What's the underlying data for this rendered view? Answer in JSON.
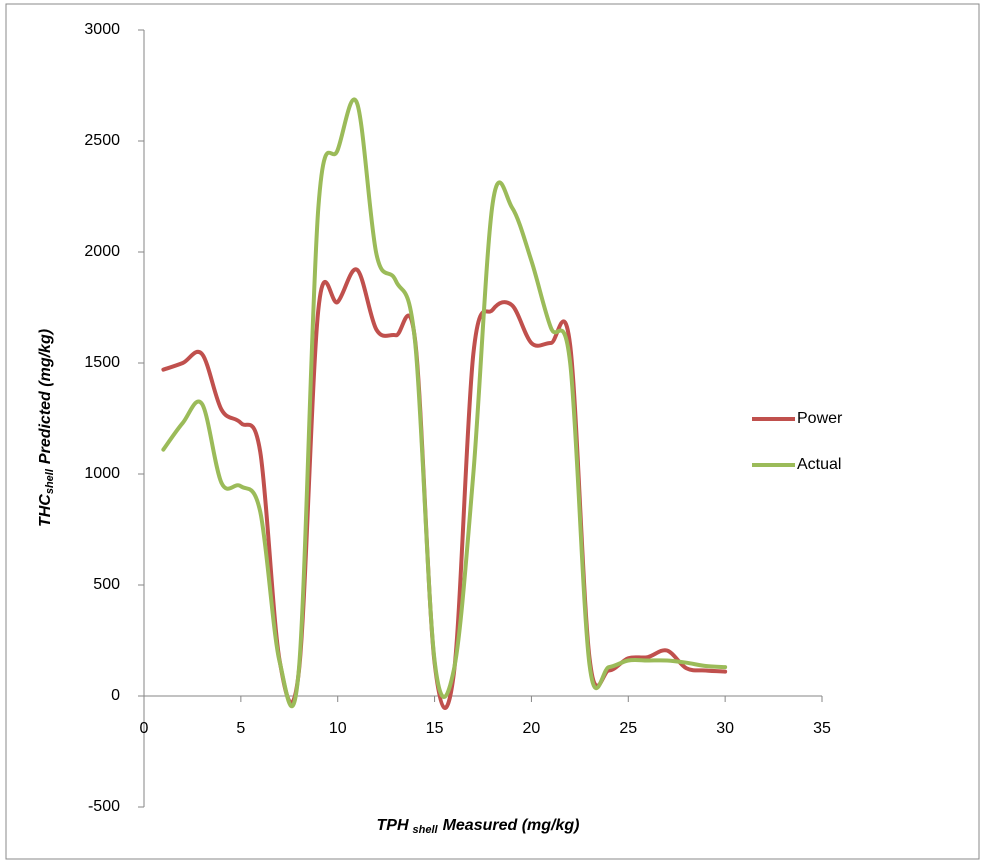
{
  "chart_data": {
    "type": "line",
    "x_label": {
      "main": "TPH",
      "sub": "shell",
      "rest": "Measured (mg/kg)"
    },
    "y_label": {
      "main": "THC",
      "sub": "shell",
      "rest": "Predicted (mg/kg)"
    },
    "x": [
      1,
      2,
      3,
      4,
      5,
      6,
      7,
      8,
      9,
      10,
      11,
      12,
      13,
      14,
      15,
      16,
      17,
      18,
      19,
      20,
      21,
      22,
      23,
      24,
      25,
      26,
      27,
      28,
      29,
      30
    ],
    "series": [
      {
        "name": "Power",
        "color": "#c0504d",
        "values": [
          1470,
          1500,
          1540,
          1290,
          1230,
          1100,
          160,
          115,
          1740,
          1775,
          1920,
          1650,
          1625,
          1600,
          150,
          105,
          1540,
          1740,
          1760,
          1590,
          1590,
          1580,
          170,
          115,
          170,
          175,
          205,
          125,
          115,
          110
        ]
      },
      {
        "name": "Actual",
        "color": "#9bbb59",
        "values": [
          1110,
          1230,
          1315,
          960,
          945,
          830,
          155,
          125,
          2200,
          2460,
          2670,
          1990,
          1870,
          1590,
          160,
          120,
          1000,
          2220,
          2200,
          1960,
          1660,
          1500,
          140,
          130,
          160,
          160,
          160,
          150,
          135,
          130
        ]
      }
    ],
    "xlim": [
      0,
      35
    ],
    "xticks": [
      0,
      5,
      10,
      15,
      20,
      25,
      30,
      35
    ],
    "ylim": [
      -500,
      3000
    ],
    "yticks": [
      -500,
      0,
      500,
      1000,
      1500,
      2000,
      2500,
      3000
    ],
    "smooth": true,
    "grid": false,
    "legend": "right"
  }
}
